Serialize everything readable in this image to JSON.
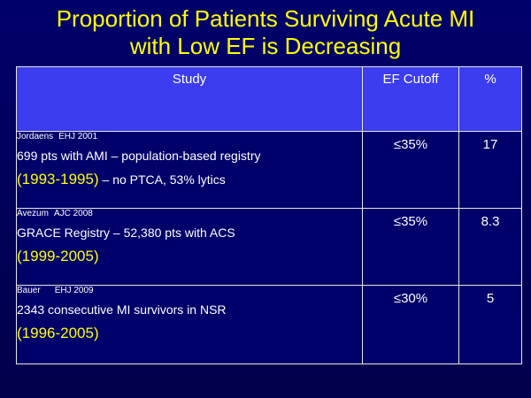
{
  "title": {
    "line1": "Proportion of Patients Surviving Acute MI",
    "line2": "with Low EF is Decreasing"
  },
  "table": {
    "headers": {
      "study": "Study",
      "ef_cutoff": "EF Cutoff",
      "percent": "%"
    },
    "rows": [
      {
        "author": "Jordaens",
        "journal": "EHJ 2001",
        "description": "699 pts with AMI – population-based registry",
        "years": "(1993-1995)",
        "note": " – no PTCA, 53% lytics",
        "ef_cutoff": "≤35%",
        "percent": "17"
      },
      {
        "author": "Avezum",
        "journal": "AJC 2008",
        "description": "GRACE Registry – 52,380 pts with ACS",
        "years": "(1999-2005)",
        "note": "",
        "ef_cutoff": "≤35%",
        "percent": "8.3"
      },
      {
        "author": "Bauer",
        "journal": "EHJ 2009",
        "description": "2343 consecutive MI survivors in NSR",
        "years": "(1996-2005)",
        "note": "",
        "ef_cutoff": "≤30%",
        "percent": "5"
      }
    ]
  },
  "colors": {
    "background": "#00006a",
    "header_fill": "#3c3cf0",
    "title_text": "#ffff00",
    "years_text": "#ffff00",
    "body_text": "#ffffff"
  }
}
